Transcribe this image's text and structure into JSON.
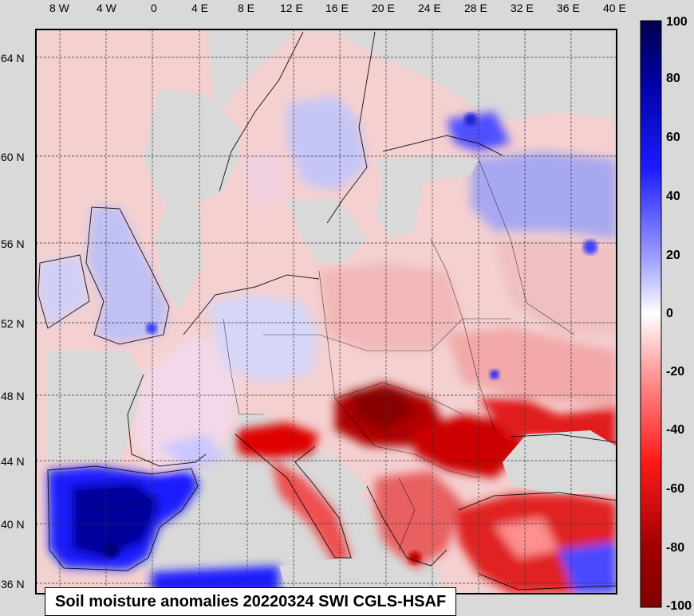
{
  "title": "Soil moisture anomalies 20220324 SWI CGLS-HSAF",
  "lon_labels": [
    "8 W",
    "4 W",
    "0",
    "4 E",
    "8 E",
    "12 E",
    "16 E",
    "20 E",
    "24 E",
    "28 E",
    "32 E",
    "36 E",
    "40 E"
  ],
  "lat_labels": [
    "64 N",
    "60 N",
    "56 N",
    "52 N",
    "48 N",
    "44 N",
    "40 N",
    "36 N"
  ],
  "colorbar": {
    "ticks": [
      "100",
      "80",
      "60",
      "40",
      "20",
      "0",
      "-20",
      "-40",
      "-60",
      "-80",
      "-100"
    ],
    "colors": {
      "max": "#00004d",
      "mid": "#ffffff",
      "min": "#800000"
    }
  },
  "colors": {
    "background": "#d9d9d9",
    "wet": "#0000cc",
    "dry": "#d40000",
    "no_data": "#cccccc"
  }
}
